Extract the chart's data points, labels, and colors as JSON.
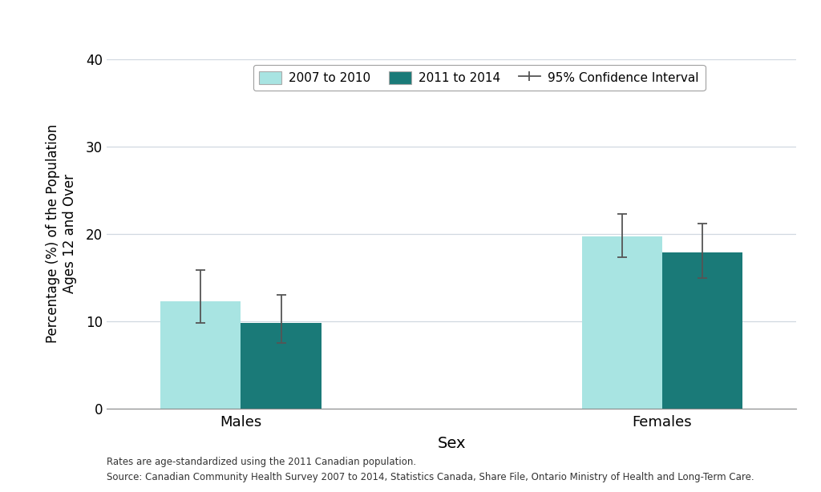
{
  "categories": [
    "Males",
    "Females"
  ],
  "values_2007": [
    12.3,
    19.7
  ],
  "values_2011": [
    9.8,
    17.9
  ],
  "ci_2007_lower": [
    9.8,
    17.3
  ],
  "ci_2007_upper": [
    15.8,
    22.3
  ],
  "ci_2011_lower": [
    7.5,
    14.9
  ],
  "ci_2011_upper": [
    13.0,
    21.2
  ],
  "color_2007": "#a8e4e2",
  "color_2011": "#1a7a78",
  "bar_width": 0.42,
  "ylim": [
    0,
    40
  ],
  "yticks": [
    0,
    10,
    20,
    30,
    40
  ],
  "xlabel": "Sex",
  "ylabel": "Percentage (%) of the Population\nAges 12 and Over",
  "legend_label_2007": "2007 to 2010",
  "legend_label_2011": "2011 to 2014",
  "legend_label_ci": "95% Confidence Interval",
  "footnote_line1": "Rates are age-standardized using the 2011 Canadian population.",
  "footnote_line2": "Source: Canadian Community Health Survey 2007 to 2014, Statistics Canada, Share File, Ontario Ministry of Health and Long-Term Care.",
  "background_color": "#ffffff",
  "grid_color": "#d0d8e0",
  "errorbar_color": "#555555",
  "errorbar_capsize": 4,
  "errorbar_linewidth": 1.3,
  "group_centers": [
    1.0,
    3.2
  ],
  "xlim": [
    0.3,
    3.9
  ]
}
